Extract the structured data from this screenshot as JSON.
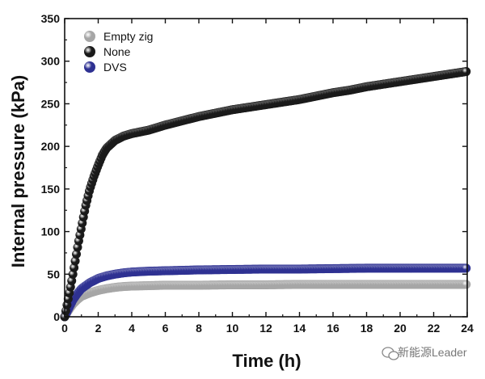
{
  "chart_data": {
    "type": "scatter",
    "xlabel": "Time (h)",
    "ylabel": "Internal pressure (kPa)",
    "xlim": [
      0,
      24
    ],
    "ylim": [
      0,
      350
    ],
    "x_ticks": [
      0,
      2,
      4,
      6,
      8,
      10,
      12,
      14,
      16,
      18,
      20,
      22,
      24
    ],
    "y_ticks": [
      0,
      50,
      100,
      150,
      200,
      250,
      300,
      350
    ],
    "grid": false,
    "legend_position": "top-left",
    "series": [
      {
        "name": "Empty zig",
        "color": "#a6a6a6",
        "points": [
          [
            0,
            0
          ],
          [
            0.25,
            8
          ],
          [
            0.5,
            15
          ],
          [
            0.75,
            20
          ],
          [
            1,
            24
          ],
          [
            1.5,
            28
          ],
          [
            2,
            31
          ],
          [
            2.5,
            33
          ],
          [
            3,
            34.5
          ],
          [
            3.5,
            35.5
          ],
          [
            4,
            36
          ],
          [
            5,
            36.5
          ],
          [
            6,
            37
          ],
          [
            8,
            37
          ],
          [
            10,
            37.5
          ],
          [
            12,
            37.5
          ],
          [
            14,
            38
          ],
          [
            16,
            38
          ],
          [
            18,
            38
          ],
          [
            20,
            38
          ],
          [
            22,
            38
          ],
          [
            24,
            38
          ]
        ]
      },
      {
        "name": "None",
        "color": "#1a1a1a",
        "points": [
          [
            0,
            0
          ],
          [
            0.2,
            20
          ],
          [
            0.4,
            40
          ],
          [
            0.6,
            62
          ],
          [
            0.8,
            85
          ],
          [
            1,
            105
          ],
          [
            1.25,
            130
          ],
          [
            1.5,
            150
          ],
          [
            1.75,
            165
          ],
          [
            2,
            178
          ],
          [
            2.25,
            190
          ],
          [
            2.5,
            198
          ],
          [
            3,
            207
          ],
          [
            3.5,
            212
          ],
          [
            4,
            215
          ],
          [
            5,
            219
          ],
          [
            6,
            225
          ],
          [
            7,
            230
          ],
          [
            8,
            235
          ],
          [
            9,
            239
          ],
          [
            10,
            243
          ],
          [
            11,
            246
          ],
          [
            12,
            249
          ],
          [
            13,
            252
          ],
          [
            14,
            255
          ],
          [
            15,
            259
          ],
          [
            16,
            263
          ],
          [
            17,
            266
          ],
          [
            18,
            270
          ],
          [
            19,
            273
          ],
          [
            20,
            276
          ],
          [
            21,
            279
          ],
          [
            22,
            282
          ],
          [
            23,
            285
          ],
          [
            24,
            288
          ]
        ]
      },
      {
        "name": "DVS",
        "color": "#2e3192",
        "points": [
          [
            0,
            0
          ],
          [
            0.25,
            10
          ],
          [
            0.5,
            20
          ],
          [
            0.75,
            27
          ],
          [
            1,
            33
          ],
          [
            1.5,
            40
          ],
          [
            2,
            45
          ],
          [
            2.5,
            48
          ],
          [
            3,
            50
          ],
          [
            3.5,
            51.5
          ],
          [
            4,
            52.5
          ],
          [
            5,
            53.5
          ],
          [
            6,
            54
          ],
          [
            8,
            55
          ],
          [
            10,
            55.5
          ],
          [
            12,
            56
          ],
          [
            14,
            56
          ],
          [
            16,
            56.5
          ],
          [
            18,
            57
          ],
          [
            20,
            57
          ],
          [
            22,
            57
          ],
          [
            24,
            57
          ]
        ]
      }
    ]
  },
  "watermark": {
    "text": "新能源Leader",
    "icon": "wechat-icon"
  }
}
